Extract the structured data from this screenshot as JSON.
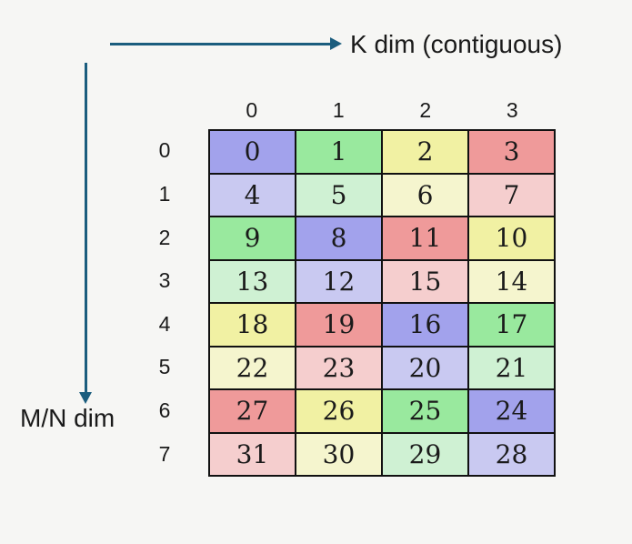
{
  "background_color": "#f6f6f4",
  "text_color": "#1a1a1a",
  "arrow_color": "#1b5d7e",
  "axes": {
    "k_label": "K dim (contiguous)",
    "mn_label": "M/N dim"
  },
  "palette": {
    "purple": "#a2a2ec",
    "green": "#99e99e",
    "yellow": "#f1f1a3",
    "red": "#ef9a9a",
    "purple_light": "#c9c9f1",
    "green_light": "#cff1d3",
    "yellow_light": "#f5f5ce",
    "red_light": "#f5cece"
  },
  "grid": {
    "col_headers": [
      "0",
      "1",
      "2",
      "3"
    ],
    "row_headers": [
      "0",
      "1",
      "2",
      "3",
      "4",
      "5",
      "6",
      "7"
    ],
    "rows": [
      [
        {
          "v": "0",
          "c": "purple"
        },
        {
          "v": "1",
          "c": "green"
        },
        {
          "v": "2",
          "c": "yellow"
        },
        {
          "v": "3",
          "c": "red"
        }
      ],
      [
        {
          "v": "4",
          "c": "purple_light"
        },
        {
          "v": "5",
          "c": "green_light"
        },
        {
          "v": "6",
          "c": "yellow_light"
        },
        {
          "v": "7",
          "c": "red_light"
        }
      ],
      [
        {
          "v": "9",
          "c": "green"
        },
        {
          "v": "8",
          "c": "purple"
        },
        {
          "v": "11",
          "c": "red"
        },
        {
          "v": "10",
          "c": "yellow"
        }
      ],
      [
        {
          "v": "13",
          "c": "green_light"
        },
        {
          "v": "12",
          "c": "purple_light"
        },
        {
          "v": "15",
          "c": "red_light"
        },
        {
          "v": "14",
          "c": "yellow_light"
        }
      ],
      [
        {
          "v": "18",
          "c": "yellow"
        },
        {
          "v": "19",
          "c": "red"
        },
        {
          "v": "16",
          "c": "purple"
        },
        {
          "v": "17",
          "c": "green"
        }
      ],
      [
        {
          "v": "22",
          "c": "yellow_light"
        },
        {
          "v": "23",
          "c": "red_light"
        },
        {
          "v": "20",
          "c": "purple_light"
        },
        {
          "v": "21",
          "c": "green_light"
        }
      ],
      [
        {
          "v": "27",
          "c": "red"
        },
        {
          "v": "26",
          "c": "yellow"
        },
        {
          "v": "25",
          "c": "green"
        },
        {
          "v": "24",
          "c": "purple"
        }
      ],
      [
        {
          "v": "31",
          "c": "red_light"
        },
        {
          "v": "30",
          "c": "yellow_light"
        },
        {
          "v": "29",
          "c": "green_light"
        },
        {
          "v": "28",
          "c": "purple_light"
        }
      ]
    ]
  }
}
